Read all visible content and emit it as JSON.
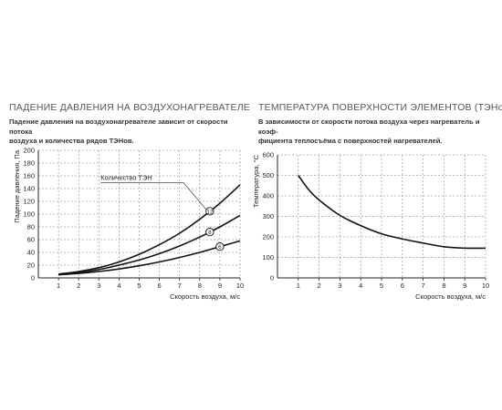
{
  "chart_data": [
    {
      "type": "line",
      "title": "ПАДЕНИЕ ДАВЛЕНИЯ НА ВОЗДУХОНАГРЕВАТЕЛЕ",
      "subtitle_lines": [
        "Падение давления на воздухонагревателе зависит от  скорости  потока",
        "воздуха и количества рядов ТЭНов."
      ],
      "xlabel": "Скорость воздуха, м/с",
      "ylabel": "Падение давления, Па",
      "xlim": [
        0,
        10
      ],
      "ylim": [
        0,
        200
      ],
      "xticks": [
        1,
        2,
        3,
        4,
        5,
        6,
        7,
        8,
        9,
        10
      ],
      "yticks": [
        0,
        20,
        40,
        60,
        80,
        100,
        120,
        140,
        160,
        180,
        200
      ],
      "grid": true,
      "annotation": "Количество ТЭН",
      "series": [
        {
          "name": "12",
          "x": [
            1,
            2,
            3,
            4,
            5,
            6,
            7,
            8,
            9,
            10
          ],
          "y": [
            6,
            10,
            16,
            25,
            37,
            52,
            70,
            92,
            117,
            146
          ]
        },
        {
          "name": "8",
          "x": [
            1,
            2,
            3,
            4,
            5,
            6,
            7,
            8,
            9,
            10
          ],
          "y": [
            5,
            8,
            13,
            20,
            28,
            38,
            50,
            64,
            80,
            98
          ]
        },
        {
          "name": "6",
          "x": [
            1,
            2,
            3,
            4,
            5,
            6,
            7,
            8,
            9,
            10
          ],
          "y": [
            5,
            7,
            10,
            14,
            19,
            25,
            32,
            40,
            49,
            58
          ]
        }
      ]
    },
    {
      "type": "line",
      "title": "ТЕМПЕРАТУРА ПОВЕРХНОСТИ ЭЛЕМЕНТОВ (ТЭНов)",
      "subtitle_lines": [
        "В зависимости от скорости потока воздуха через нагреватель  и  коэф-",
        "фициента  теплосъёма с поверхностей нагревателей."
      ],
      "xlabel": "Скорость воздуха, м/с",
      "ylabel": "Температура, °С",
      "xlim": [
        0,
        10
      ],
      "ylim": [
        0,
        600
      ],
      "xticks": [
        1,
        2,
        3,
        4,
        5,
        6,
        7,
        8,
        9,
        10
      ],
      "yticks": [
        0,
        100,
        200,
        300,
        400,
        500,
        600
      ],
      "grid": true,
      "series": [
        {
          "x": [
            1,
            1.5,
            2,
            3,
            4,
            5,
            6,
            7,
            8,
            9,
            10
          ],
          "y": [
            500,
            430,
            380,
            305,
            255,
            215,
            190,
            170,
            152,
            145,
            145
          ]
        }
      ]
    }
  ]
}
